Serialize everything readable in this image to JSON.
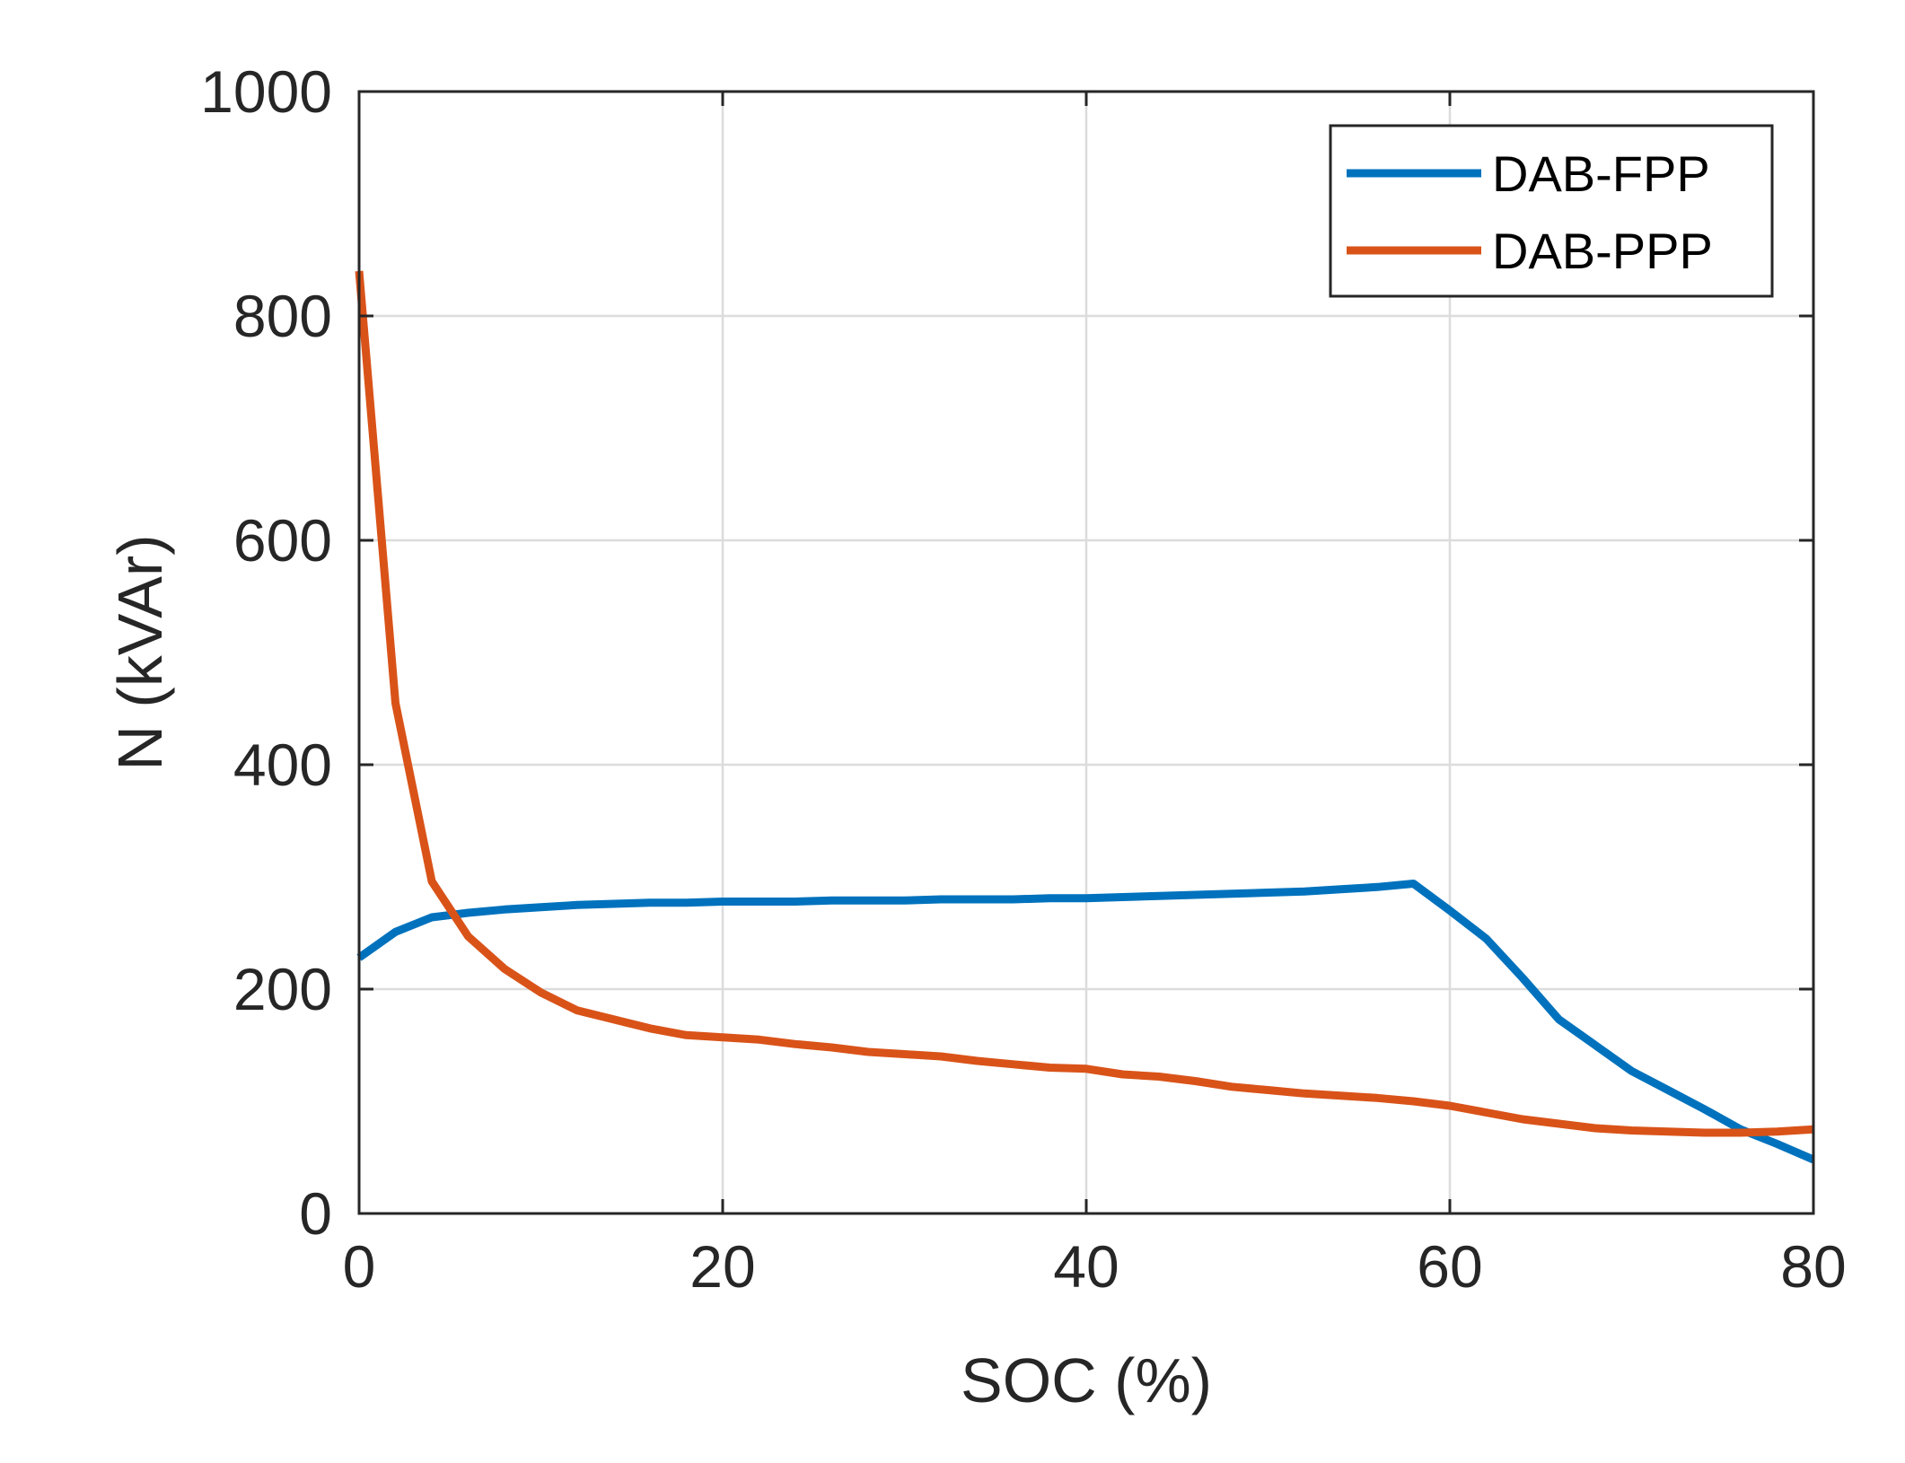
{
  "chart_data": {
    "type": "line",
    "title": "",
    "xlabel": "SOC (%)",
    "ylabel": "N (kVAr)",
    "xlim": [
      0,
      80
    ],
    "ylim": [
      0,
      1000
    ],
    "xticks": [
      0,
      20,
      40,
      60,
      80
    ],
    "yticks": [
      0,
      200,
      400,
      600,
      800,
      1000
    ],
    "xtick_labels": [
      "0",
      "20",
      "40",
      "60",
      "80"
    ],
    "ytick_labels": [
      "0",
      "200",
      "400",
      "600",
      "800",
      "1000"
    ],
    "grid": true,
    "legend_position": "top-right",
    "series": [
      {
        "name": "DAB-FPP",
        "color": "#0072BD",
        "x": [
          0,
          2,
          4,
          6,
          8,
          10,
          12,
          14,
          16,
          18,
          20,
          22,
          24,
          26,
          28,
          30,
          32,
          34,
          36,
          38,
          40,
          42,
          44,
          46,
          48,
          50,
          52,
          54,
          56,
          58,
          60,
          62,
          64,
          66,
          68,
          70,
          72,
          74,
          76,
          78,
          80
        ],
        "y": [
          228,
          251,
          264,
          268,
          271,
          273,
          275,
          276,
          277,
          277,
          278,
          278,
          278,
          279,
          279,
          279,
          280,
          280,
          280,
          281,
          281,
          282,
          283,
          284,
          285,
          286,
          287,
          289,
          291,
          294,
          270,
          245,
          210,
          173,
          150,
          127,
          110,
          93,
          75,
          62,
          48
        ]
      },
      {
        "name": "DAB-PPP",
        "color": "#D95319",
        "x": [
          0,
          2,
          4,
          6,
          8,
          10,
          12,
          14,
          16,
          18,
          20,
          22,
          24,
          26,
          28,
          30,
          32,
          34,
          36,
          38,
          40,
          42,
          44,
          46,
          48,
          50,
          52,
          54,
          56,
          58,
          60,
          62,
          64,
          66,
          68,
          70,
          72,
          74,
          76,
          78,
          80
        ],
        "y": [
          840,
          455,
          296,
          247,
          218,
          197,
          181,
          173,
          165,
          159,
          157,
          155,
          151,
          148,
          144,
          142,
          140,
          136,
          133,
          130,
          129,
          124,
          122,
          118,
          113,
          110,
          107,
          105,
          103,
          100,
          96,
          90,
          84,
          80,
          76,
          74,
          73,
          72,
          72,
          73,
          75
        ]
      }
    ]
  }
}
